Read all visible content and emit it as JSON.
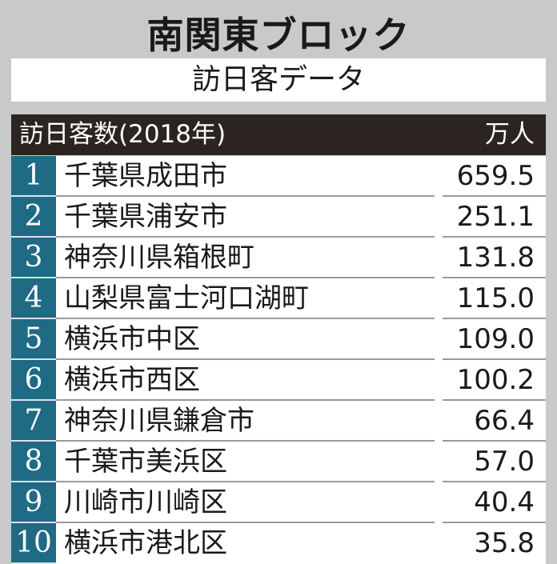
{
  "title": "南関東ブロック",
  "subtitle": "訪日客データ",
  "chart_data": {
    "type": "table",
    "title": "訪日客数(2018年)",
    "unit": "万人",
    "columns": [
      "rank",
      "place",
      "visitors"
    ],
    "rows": [
      {
        "rank": "1",
        "place": "千葉県成田市",
        "value": "659.5"
      },
      {
        "rank": "2",
        "place": "千葉県浦安市",
        "value": "251.1"
      },
      {
        "rank": "3",
        "place": "神奈川県箱根町",
        "value": "131.8"
      },
      {
        "rank": "4",
        "place": "山梨県富士河口湖町",
        "value": "115.0"
      },
      {
        "rank": "5",
        "place": "横浜市中区",
        "value": "109.0"
      },
      {
        "rank": "6",
        "place": "横浜市西区",
        "value": "100.2"
      },
      {
        "rank": "7",
        "place": "神奈川県鎌倉市",
        "value": "66.4"
      },
      {
        "rank": "8",
        "place": "千葉市美浜区",
        "value": "57.0"
      },
      {
        "rank": "9",
        "place": "川崎市川崎区",
        "value": "40.4"
      },
      {
        "rank": "10",
        "place": "横浜市港北区",
        "value": "35.8"
      }
    ]
  },
  "colors": {
    "background": "#c9c9c9",
    "header": "#2b2421",
    "rank": "#1f6a84"
  }
}
